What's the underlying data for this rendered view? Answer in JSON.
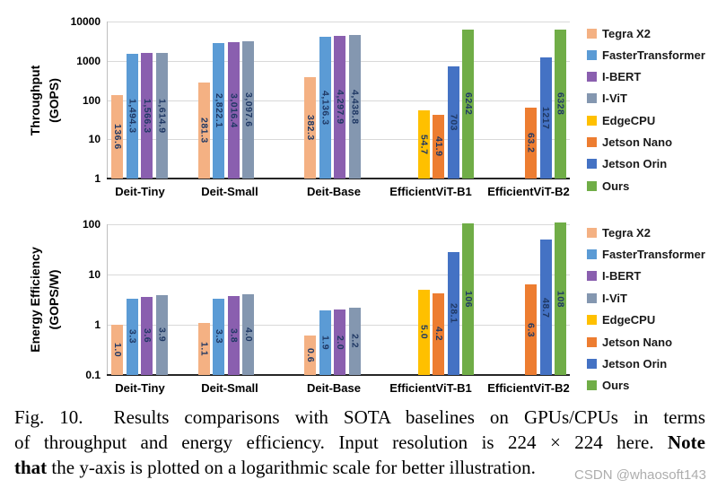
{
  "caption": {
    "lines": [
      [
        {
          "t": "Fig. 10.  Results comparisons with SOTA baselines on GPUs/CPUs in terms",
          "b": false
        }
      ],
      [
        {
          "t": "of throughput and energy efficiency. Input resolution is 224 × 224 here. ",
          "b": false
        },
        {
          "t": "Note",
          "b": true
        }
      ],
      [
        {
          "t": "that",
          "b": true
        },
        {
          "t": " the y-axis is plotted on a logarithmic scale for better illustration.",
          "b": false
        }
      ]
    ]
  },
  "watermark": "CSDN @whaosoft143",
  "chart_data": [
    {
      "type": "bar",
      "title": "",
      "ylabel": "Throughput (GOPS)",
      "ylabel_lines": [
        "Throughput",
        "(GOPS)"
      ],
      "yscale": "log",
      "ylim": [
        1,
        10000
      ],
      "ytick_labels": [
        "10000",
        "1000",
        "100",
        "10",
        "1"
      ],
      "grid": true,
      "legend_position": "right",
      "categories": [
        "Deit-Tiny",
        "Deit-Small",
        "Deit-Base",
        "EfficientViT-B1",
        "EfficientViT-B2"
      ],
      "series": [
        {
          "name": "Tegra X2",
          "color": "#F4B183",
          "values": [
            136.6,
            281.3,
            382.3,
            null,
            null
          ],
          "labels": [
            "136.6",
            "281.3",
            "382.3",
            "",
            ""
          ]
        },
        {
          "name": "FasterTransformer",
          "color": "#5B9BD5",
          "values": [
            1494.3,
            2822.1,
            4136.3,
            null,
            null
          ],
          "labels": [
            "1,494.3",
            "2,822.1",
            "4,136.3",
            "",
            ""
          ]
        },
        {
          "name": "I-BERT",
          "color": "#8A5FAF",
          "values": [
            1566.3,
            3016.4,
            4297.9,
            null,
            null
          ],
          "labels": [
            "1,566.3",
            "3,016.4",
            "4,297.9",
            "",
            ""
          ]
        },
        {
          "name": "I-ViT",
          "color": "#8497B0",
          "values": [
            1614.9,
            3097.6,
            4438.8,
            null,
            null
          ],
          "labels": [
            "1,614.9",
            "3,097.6",
            "4,438.8",
            "",
            ""
          ]
        },
        {
          "name": "EdgeCPU",
          "color": "#FFC000",
          "values": [
            null,
            null,
            null,
            54.7,
            null
          ],
          "labels": [
            "",
            "",
            "",
            "54.7",
            ""
          ]
        },
        {
          "name": "Jetson Nano",
          "color": "#ED7D31",
          "values": [
            null,
            null,
            null,
            41.9,
            63.2
          ],
          "labels": [
            "",
            "",
            "",
            "41.9",
            "63.2"
          ]
        },
        {
          "name": "Jetson Orin",
          "color": "#4472C4",
          "values": [
            null,
            null,
            null,
            703,
            1217
          ],
          "labels": [
            "",
            "",
            "",
            "703",
            "1217"
          ]
        },
        {
          "name": "Ours",
          "color": "#70AD47",
          "values": [
            null,
            null,
            null,
            6242,
            6328
          ],
          "labels": [
            "",
            "",
            "",
            "6242",
            "6328"
          ]
        }
      ]
    },
    {
      "type": "bar",
      "title": "",
      "ylabel": "Energy Efficiency (GOPS/W)",
      "ylabel_lines": [
        "Energy Efficiency",
        "(GOPS/W)"
      ],
      "yscale": "log",
      "ylim": [
        0.1,
        100
      ],
      "ytick_labels": [
        "100",
        "10",
        "1",
        "0.1"
      ],
      "grid": true,
      "legend_position": "right",
      "categories": [
        "Deit-Tiny",
        "Deit-Small",
        "Deit-Base",
        "EfficientViT-B1",
        "EfficientViT-B2"
      ],
      "series": [
        {
          "name": "Tegra X2",
          "color": "#F4B183",
          "values": [
            1.0,
            1.1,
            0.6,
            null,
            null
          ],
          "labels": [
            "1.0",
            "1.1",
            "0.6",
            "",
            ""
          ]
        },
        {
          "name": "FasterTransformer",
          "color": "#5B9BD5",
          "values": [
            3.3,
            3.3,
            1.9,
            null,
            null
          ],
          "labels": [
            "3.3",
            "3.3",
            "1.9",
            "",
            ""
          ]
        },
        {
          "name": "I-BERT",
          "color": "#8A5FAF",
          "values": [
            3.6,
            3.8,
            2.0,
            null,
            null
          ],
          "labels": [
            "3.6",
            "3.8",
            "2.0",
            "",
            ""
          ]
        },
        {
          "name": "I-ViT",
          "color": "#8497B0",
          "values": [
            3.9,
            4.0,
            2.2,
            null,
            null
          ],
          "labels": [
            "3.9",
            "4.0",
            "2.2",
            "",
            ""
          ]
        },
        {
          "name": "EdgeCPU",
          "color": "#FFC000",
          "values": [
            null,
            null,
            null,
            5.0,
            null
          ],
          "labels": [
            "",
            "",
            "",
            "5.0",
            ""
          ]
        },
        {
          "name": "Jetson Nano",
          "color": "#ED7D31",
          "values": [
            null,
            null,
            null,
            4.2,
            6.3
          ],
          "labels": [
            "",
            "",
            "",
            "4.2",
            "6.3"
          ]
        },
        {
          "name": "Jetson Orin",
          "color": "#4472C4",
          "values": [
            null,
            null,
            null,
            28.1,
            48.7
          ],
          "labels": [
            "",
            "",
            "",
            "28.1",
            "48.7"
          ]
        },
        {
          "name": "Ours",
          "color": "#70AD47",
          "values": [
            null,
            null,
            null,
            106,
            108
          ],
          "labels": [
            "",
            "",
            "",
            "106",
            "108"
          ]
        }
      ]
    }
  ]
}
